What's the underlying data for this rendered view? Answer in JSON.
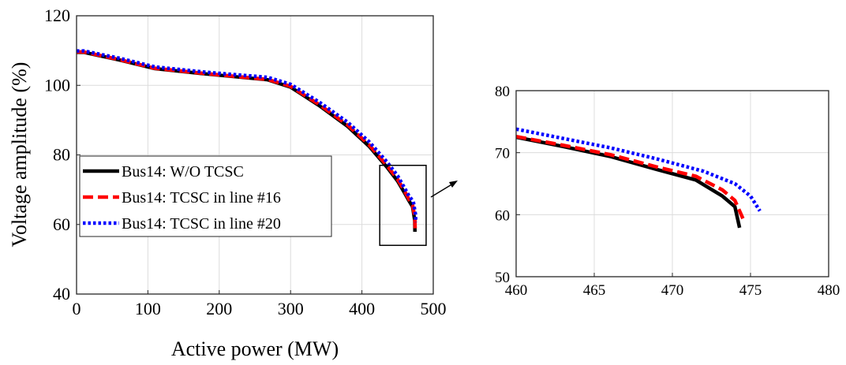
{
  "chart_data": [
    {
      "type": "line",
      "xlabel": "Active power (MW)",
      "ylabel": "Voltage amplitude (%)",
      "xlim": [
        0,
        500
      ],
      "ylim": [
        40,
        120
      ],
      "xticks": [
        0,
        100,
        200,
        300,
        400,
        500
      ],
      "yticks": [
        40,
        60,
        80,
        100,
        120
      ],
      "grid": true,
      "legend": "bottom-left",
      "zoom_box": {
        "x": [
          425,
          490
        ],
        "y": [
          54,
          77
        ]
      },
      "series": [
        {
          "name": "Bus14: W/O TCSC",
          "color": "#000000",
          "style": "solid",
          "x": [
            0,
            10,
            60,
            110,
            180,
            268,
            300,
            340,
            380,
            410,
            435,
            450,
            460,
            466,
            471,
            474,
            474.3
          ],
          "y": [
            109.5,
            109.5,
            107.3,
            104.8,
            103.3,
            101.6,
            99.5,
            94.2,
            88.2,
            82.5,
            76.5,
            72.5,
            69.0,
            66.8,
            65.1,
            61.2,
            57.9
          ]
        },
        {
          "name": "Bus14: TCSC in line #16",
          "color": "#ff0000",
          "style": "dashed",
          "x": [
            0,
            10,
            60,
            110,
            180,
            268,
            300,
            340,
            380,
            410,
            435,
            450,
            460,
            466,
            471,
            474,
            474.6
          ],
          "y": [
            109.6,
            109.6,
            107.4,
            104.9,
            103.4,
            101.7,
            99.7,
            94.5,
            88.6,
            82.9,
            77.0,
            73.0,
            69.5,
            67.2,
            65.6,
            62.3,
            58.9
          ]
        },
        {
          "name": "Bus14: TCSC in line #20",
          "color": "#0000ff",
          "style": "dotted",
          "x": [
            0,
            10,
            60,
            110,
            180,
            268,
            300,
            340,
            380,
            410,
            435,
            450,
            460,
            466,
            472,
            475,
            475.6
          ],
          "y": [
            109.9,
            109.9,
            107.8,
            105.3,
            103.8,
            102.3,
            100.3,
            95.2,
            89.4,
            83.8,
            78.0,
            74.0,
            70.4,
            68.2,
            66.6,
            63.0,
            60.6
          ]
        }
      ]
    },
    {
      "type": "line",
      "xlabel": "",
      "ylabel": "",
      "xlim": [
        460,
        480
      ],
      "ylim": [
        50,
        80
      ],
      "xticks": [
        460,
        465,
        470,
        475,
        480
      ],
      "yticks": [
        50,
        60,
        70,
        80
      ],
      "grid": true,
      "series": [
        {
          "name": "Bus14: W/O TCSC",
          "color": "#000000",
          "style": "solid",
          "x": [
            460,
            463,
            466,
            469,
            471.5,
            473.2,
            474.0,
            474.3
          ],
          "y": [
            72.5,
            71.0,
            69.4,
            67.3,
            65.6,
            63.0,
            61.3,
            57.9
          ]
        },
        {
          "name": "Bus14: TCSC in line #16",
          "color": "#ff0000",
          "style": "dashed",
          "x": [
            460,
            463,
            466,
            469,
            471.5,
            473.2,
            474.0,
            474.6
          ],
          "y": [
            72.6,
            71.2,
            69.7,
            67.7,
            66.2,
            64.0,
            62.3,
            58.9
          ]
        },
        {
          "name": "Bus14: TCSC in line #20",
          "color": "#0000ff",
          "style": "dotted",
          "x": [
            460,
            463,
            466,
            469,
            472,
            474.0,
            475.0,
            475.6
          ],
          "y": [
            73.8,
            72.3,
            70.8,
            69.0,
            67.0,
            65.0,
            63.0,
            60.6
          ]
        }
      ]
    }
  ]
}
